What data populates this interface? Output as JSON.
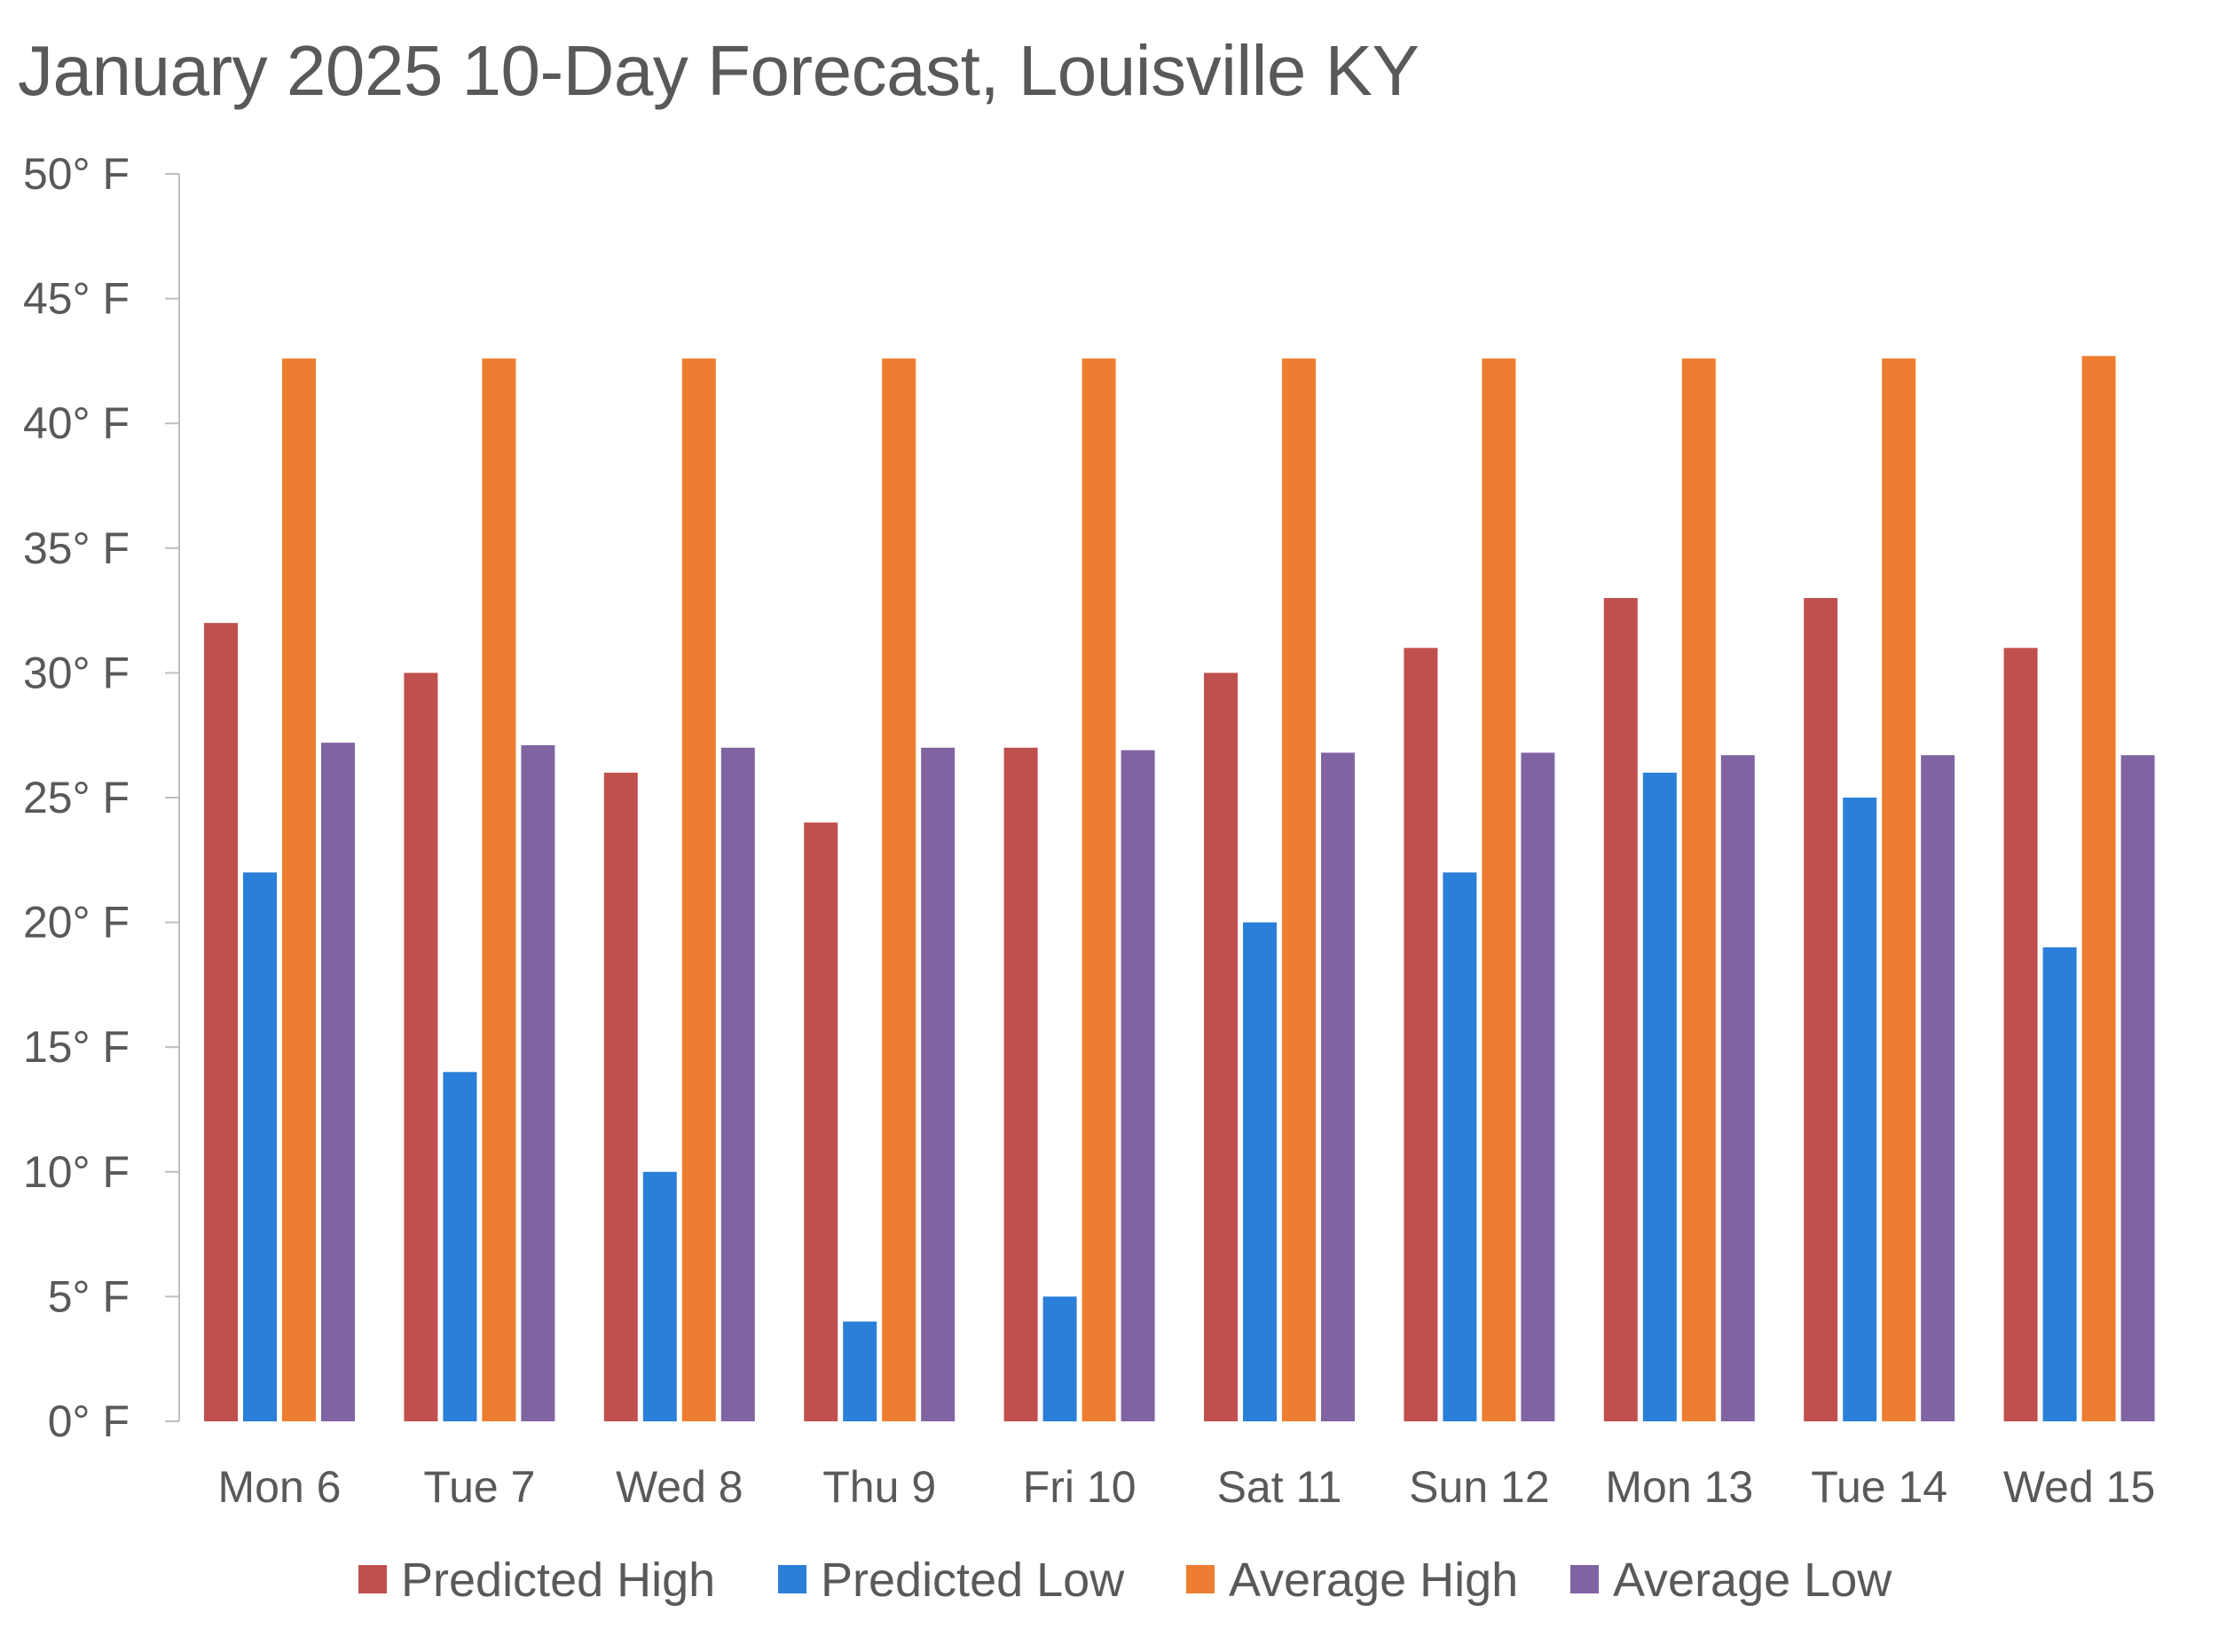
{
  "chart_data": {
    "type": "bar",
    "title": "January 2025 10-Day Forecast, Louisville KY",
    "xlabel": "",
    "ylabel": "",
    "ylim": [
      0,
      50
    ],
    "y_tick_step": 5,
    "y_tick_format": "{v}° F",
    "grid": false,
    "legend_position": "bottom",
    "categories": [
      "Mon 6",
      "Tue 7",
      "Wed 8",
      "Thu 9",
      "Fri 10",
      "Sat 11",
      "Sun 12",
      "Mon 13",
      "Tue 14",
      "Wed 15"
    ],
    "series": [
      {
        "name": "Predicted High",
        "color": "#C0504D",
        "values": [
          32,
          30,
          26,
          24,
          27,
          30,
          31,
          33,
          33,
          31
        ]
      },
      {
        "name": "Predicted Low",
        "color": "#2A7FD8",
        "values": [
          22,
          14,
          10,
          4,
          5,
          20,
          22,
          26,
          25,
          19
        ]
      },
      {
        "name": "Average High",
        "color": "#ED7D31",
        "values": [
          42.6,
          42.6,
          42.6,
          42.6,
          42.6,
          42.6,
          42.6,
          42.6,
          42.6,
          42.7
        ]
      },
      {
        "name": "Average Low",
        "color": "#8064A2",
        "values": [
          27.2,
          27.1,
          27.0,
          27.0,
          26.9,
          26.8,
          26.8,
          26.7,
          26.7,
          26.7
        ]
      }
    ]
  }
}
